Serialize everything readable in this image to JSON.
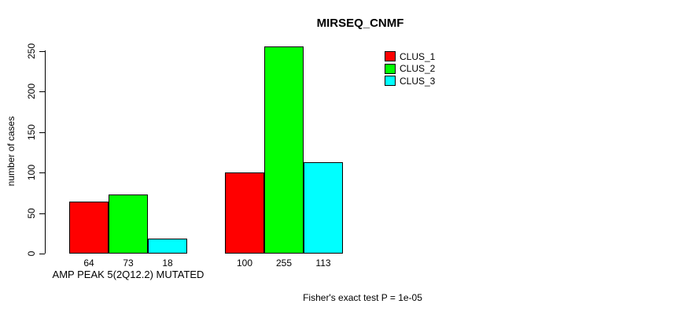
{
  "chart_data": {
    "type": "bar",
    "title": "MIRSEQ_CNMF",
    "ylabel": "number of cases",
    "xlabel": "",
    "ylim": [
      0,
      250
    ],
    "yticks": [
      0,
      50,
      100,
      150,
      200,
      250
    ],
    "grid": false,
    "legend_position": "top-right",
    "series": [
      {
        "name": "CLUS_1",
        "color": "#FF0000"
      },
      {
        "name": "CLUS_2",
        "color": "#00FF00"
      },
      {
        "name": "CLUS_3",
        "color": "#00FFFF"
      }
    ],
    "groups": [
      {
        "label": "AMP PEAK  5(2Q12.2) MUTATED",
        "values": [
          64,
          73,
          18
        ]
      },
      {
        "label": "",
        "values": [
          100,
          255,
          113
        ]
      }
    ],
    "annotation": "Fisher's exact test P = 1e-05"
  }
}
